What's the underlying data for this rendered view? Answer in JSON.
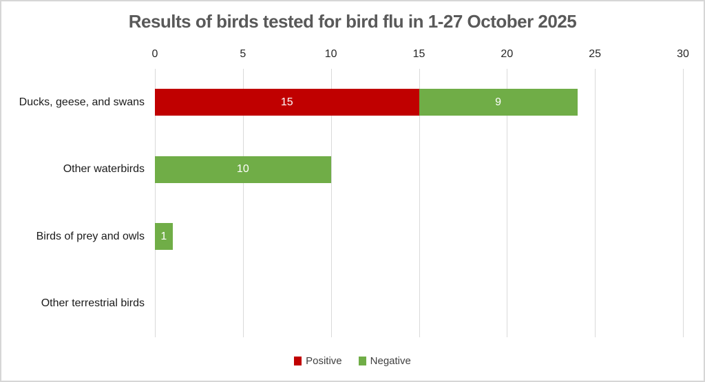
{
  "title": "Results of birds tested for bird flu in 1-27 October 2025",
  "chart_data": {
    "type": "bar",
    "orientation": "horizontal",
    "stacked": true,
    "title": "Results of birds tested for bird flu in 1-27 October 2025",
    "categories": [
      "Ducks, geese, and swans",
      "Other waterbirds",
      "Birds of prey and owls",
      "Other terrestrial birds"
    ],
    "series": [
      {
        "name": "Positive",
        "color": "#c00000",
        "values": [
          15,
          0,
          0,
          0
        ]
      },
      {
        "name": "Negative",
        "color": "#70ad47",
        "values": [
          9,
          10,
          1,
          0
        ]
      }
    ],
    "xlabel": "",
    "ylabel": "",
    "xlim": [
      0,
      30
    ],
    "x_ticks": [
      0,
      5,
      10,
      15,
      20,
      25,
      30
    ],
    "grid": "vertical",
    "gridline_color": "#d9d9d9",
    "bar_label_color": "#ffffff",
    "legend_position": "bottom"
  },
  "legend": {
    "items": [
      {
        "label": "Positive",
        "color": "#c00000"
      },
      {
        "label": "Negative",
        "color": "#70ad47"
      }
    ]
  }
}
